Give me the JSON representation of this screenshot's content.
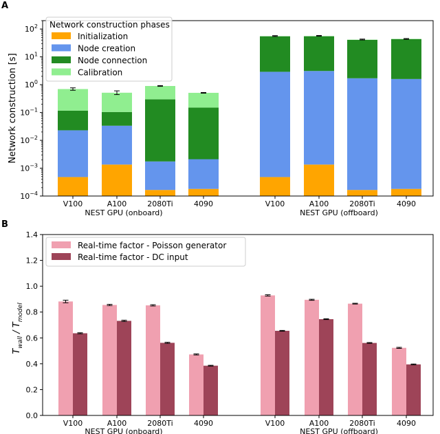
{
  "chart_data": [
    {
      "panel_label": "A",
      "type": "bar",
      "stacked": true,
      "ylabel": "Network construction [s]",
      "yscale": "log",
      "ylim": [
        0.0001,
        200
      ],
      "yticks": [
        0.0001,
        0.001,
        0.01,
        0.1,
        1,
        10,
        100
      ],
      "yticks_labels": [
        {
          "base": "10",
          "exp": "−4"
        },
        {
          "base": "10",
          "exp": "−3"
        },
        {
          "base": "10",
          "exp": "−2"
        },
        {
          "base": "10",
          "exp": "−1"
        },
        {
          "base": "10",
          "exp": "0"
        },
        {
          "base": "10",
          "exp": "1"
        },
        {
          "base": "10",
          "exp": "2"
        }
      ],
      "groups": [
        {
          "label": "NEST GPU (onboard)",
          "categories": [
            "V100",
            "A100",
            "2080Ti",
            "4090"
          ]
        },
        {
          "label": "NEST GPU (offboard)",
          "categories": [
            "V100",
            "A100",
            "2080Ti",
            "4090"
          ]
        }
      ],
      "legend": {
        "title": "Network construction phases",
        "position": "upper-left"
      },
      "series": [
        {
          "name": "Initialization",
          "color": "#ffa500",
          "values": [
            0.00048,
            0.00135,
            0.000165,
            0.00018,
            0.00048,
            0.00135,
            0.000165,
            0.00018
          ]
        },
        {
          "name": "Node creation",
          "color": "#6495ed",
          "values": [
            0.0225,
            0.0322,
            0.00158,
            0.00192,
            2.9,
            3.1,
            1.7,
            1.6
          ]
        },
        {
          "name": "Node connection",
          "color": "#228b22",
          "values": [
            0.094,
            0.0708,
            0.296,
            0.148,
            52,
            52,
            39,
            42
          ]
        },
        {
          "name": "Calibration",
          "color": "#90ee90",
          "values": [
            0.58,
            0.41,
            0.6,
            0.36,
            0.8,
            0.9,
            0.7,
            0.8
          ]
        }
      ],
      "totals": [
        0.7,
        0.52,
        0.9,
        0.51,
        56,
        57,
        42,
        44
      ],
      "errors": [
        0.07,
        0.08,
        0.03,
        0.015,
        2.0,
        1.5,
        1.5,
        1.5
      ]
    },
    {
      "panel_label": "B",
      "type": "bar",
      "ylabel_main": "T",
      "ylabel_sub1": "wall",
      "ylabel_sep": " / T",
      "ylabel_sub2": "model",
      "ylim": [
        0,
        1.4
      ],
      "yticks": [
        0.0,
        0.2,
        0.4,
        0.6,
        0.8,
        1.0,
        1.2,
        1.4
      ],
      "yticks_labels": [
        "0.0",
        "0.2",
        "0.4",
        "0.6",
        "0.8",
        "1.0",
        "1.2",
        "1.4"
      ],
      "groups": [
        {
          "label": "NEST GPU (onboard)",
          "categories": [
            "V100",
            "A100",
            "2080Ti",
            "4090"
          ]
        },
        {
          "label": "NEST GPU (offboard)",
          "categories": [
            "V100",
            "A100",
            "2080Ti",
            "4090"
          ]
        }
      ],
      "legend": {
        "position": "upper-left"
      },
      "series": [
        {
          "name": "Real-time factor - Poisson generator",
          "color": "#f0a0b0",
          "values": [
            0.882,
            0.855,
            0.852,
            0.472,
            0.929,
            0.895,
            0.865,
            0.523
          ],
          "errors": [
            0.01,
            0.005,
            0.005,
            0.004,
            0.005,
            0.004,
            0.003,
            0.004
          ]
        },
        {
          "name": "Real-time factor - DC input",
          "color": "#9e4458",
          "values": [
            0.636,
            0.732,
            0.562,
            0.385,
            0.655,
            0.745,
            0.561,
            0.395
          ],
          "errors": [
            0.004,
            0.005,
            0.004,
            0.003,
            0.003,
            0.003,
            0.003,
            0.003
          ]
        }
      ]
    }
  ]
}
